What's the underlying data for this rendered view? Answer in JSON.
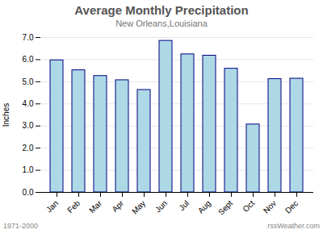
{
  "chart_data": {
    "type": "bar",
    "title": "Average Monthly Precipitation",
    "subtitle": "New Orleans,Louisiana",
    "ylabel": "Inches",
    "categories": [
      "Jan",
      "Feb",
      "Mar",
      "Apr",
      "May",
      "Jun",
      "Jul",
      "Aug",
      "Sept",
      "Oct",
      "Nov",
      "Dec"
    ],
    "values": [
      5.97,
      5.52,
      5.26,
      5.07,
      4.63,
      6.85,
      6.24,
      6.18,
      5.59,
      3.07,
      5.12,
      5.14
    ],
    "color": "#add8e6",
    "ylim": [
      0.0,
      7.0
    ],
    "yticks": [
      {
        "value": 0,
        "label": "0.0"
      },
      {
        "value": 1,
        "label": "1.0"
      },
      {
        "value": 2,
        "label": "2.0"
      },
      {
        "value": 3,
        "label": "3.0"
      },
      {
        "value": 4,
        "label": "4.0"
      },
      {
        "value": 5,
        "label": "5.0"
      },
      {
        "value": 6,
        "label": "6.0"
      },
      {
        "value": 7,
        "label": "7.0"
      }
    ],
    "grid": true,
    "annotations": [
      "1971-2000",
      "rssWeather.com"
    ]
  }
}
